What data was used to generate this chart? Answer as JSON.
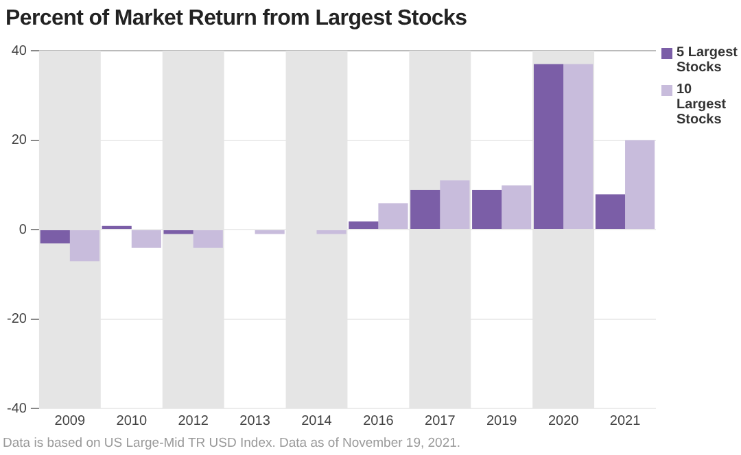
{
  "chart_data": {
    "type": "bar",
    "title": "Percent of Market Return from Largest Stocks",
    "categories": [
      "2009",
      "2010",
      "2012",
      "2013",
      "2014",
      "2016",
      "2017",
      "2019",
      "2020",
      "2021"
    ],
    "series": [
      {
        "name": "5 Largest Stocks",
        "color": "#7b5ea7",
        "values": [
          -3.1,
          0.8,
          -1,
          0,
          0,
          1.8,
          8.9,
          8.9,
          37,
          7.9
        ]
      },
      {
        "name": "10 Largest Stocks",
        "color": "#c8bcdc",
        "values": [
          -7.1,
          -4.1,
          -4.1,
          -1,
          -1,
          5.9,
          11,
          9.9,
          37,
          20
        ]
      }
    ],
    "ylim": [
      -40,
      40
    ],
    "yticks": [
      -40,
      -20,
      0,
      20,
      40
    ],
    "grid": "y",
    "legend": "top right",
    "bands": [
      {
        "axis": "x",
        "from": "2009",
        "to": "2009",
        "color": "#e5e5e5"
      },
      {
        "axis": "x",
        "from": "2012",
        "to": "2012",
        "color": "#e5e5e5"
      },
      {
        "axis": "x",
        "from": "2014",
        "to": "2014",
        "color": "#e5e5e5"
      },
      {
        "axis": "x",
        "from": "2017",
        "to": "2017",
        "color": "#e5e5e5"
      },
      {
        "axis": "x",
        "from": "2020",
        "to": "2020",
        "color": "#e5e5e5"
      }
    ],
    "annotations": [
      "Data is based on US Large-Mid TR USD Index. Data as of November 19, 2021."
    ]
  }
}
